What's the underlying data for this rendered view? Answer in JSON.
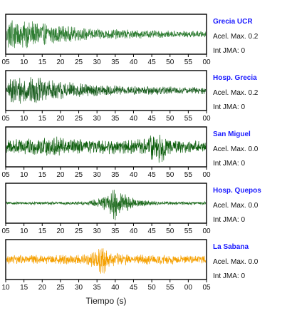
{
  "chart_data": {
    "type": "line",
    "xlabel": "Tiempo (s)",
    "panels": [
      {
        "station": "Grecia UCR",
        "acel_label": "Acel. Max. 0.2",
        "jma_label": "Int JMA: 0",
        "color": "#2e7d32",
        "tick_labels": [
          "05",
          "10",
          "15",
          "20",
          "25",
          "30",
          "35",
          "40",
          "45",
          "50",
          "55",
          "00"
        ],
        "xlim": [
          5,
          62
        ],
        "envelope": [
          [
            5,
            0.3
          ],
          [
            6,
            0.95
          ],
          [
            9,
            0.9
          ],
          [
            13,
            0.75
          ],
          [
            17,
            0.6
          ],
          [
            22,
            0.45
          ],
          [
            27,
            0.35
          ],
          [
            33,
            0.3
          ],
          [
            40,
            0.25
          ],
          [
            50,
            0.2
          ],
          [
            62,
            0.18
          ]
        ]
      },
      {
        "station": "Hosp. Grecia",
        "acel_label": "Acel. Max. 0.2",
        "jma_label": "Int JMA: 0",
        "color": "#1b5e20",
        "tick_labels": [
          "05",
          "10",
          "15",
          "20",
          "25",
          "30",
          "35",
          "40",
          "45",
          "50",
          "55",
          "00"
        ],
        "xlim": [
          1,
          59
        ],
        "envelope": [
          [
            1,
            0.3
          ],
          [
            3,
            0.85
          ],
          [
            7,
            0.75
          ],
          [
            11,
            0.7
          ],
          [
            15,
            0.55
          ],
          [
            20,
            0.45
          ],
          [
            25,
            0.35
          ],
          [
            30,
            0.3
          ],
          [
            40,
            0.25
          ],
          [
            50,
            0.22
          ],
          [
            59,
            0.2
          ]
        ]
      },
      {
        "station": "San Miguel",
        "acel_label": "Acel. Max. 0.0",
        "jma_label": "Int JMA: 0",
        "color": "#0d5e0d",
        "tick_labels": [
          "05",
          "10",
          "15",
          "20",
          "25",
          "30",
          "35",
          "40",
          "45",
          "50",
          "55",
          "00"
        ],
        "xlim": [
          5,
          62
        ],
        "envelope": [
          [
            5,
            0.4
          ],
          [
            8,
            0.5
          ],
          [
            12,
            0.45
          ],
          [
            18,
            0.5
          ],
          [
            20,
            0.65
          ],
          [
            22,
            0.45
          ],
          [
            30,
            0.4
          ],
          [
            40,
            0.4
          ],
          [
            45,
            0.45
          ],
          [
            47,
            0.95
          ],
          [
            49,
            0.9
          ],
          [
            51,
            0.5
          ],
          [
            55,
            0.35
          ],
          [
            62,
            0.3
          ]
        ]
      },
      {
        "station": "Hosp. Quepos",
        "acel_label": "Acel. Max. 0.0",
        "jma_label": "Int JMA: 0",
        "color": "#1e6b1e",
        "tick_labels": [
          "05",
          "10",
          "15",
          "20",
          "25",
          "30",
          "35",
          "40",
          "45",
          "50",
          "55",
          "00"
        ],
        "xlim": [
          5,
          62
        ],
        "envelope": [
          [
            5,
            0.08
          ],
          [
            20,
            0.08
          ],
          [
            28,
            0.1
          ],
          [
            31,
            0.25
          ],
          [
            34,
            0.5
          ],
          [
            36,
            0.95
          ],
          [
            38,
            0.7
          ],
          [
            40,
            0.4
          ],
          [
            43,
            0.2
          ],
          [
            48,
            0.1
          ],
          [
            62,
            0.08
          ]
        ]
      },
      {
        "station": "La Sabana",
        "acel_label": "Acel. Max. 0.0",
        "jma_label": "Int JMA: 0",
        "color": "#f5a000",
        "tick_labels": [
          "10",
          "15",
          "20",
          "25",
          "30",
          "35",
          "40",
          "45",
          "50",
          "55",
          "00",
          "05"
        ],
        "xlim": [
          6,
          65
        ],
        "envelope": [
          [
            6,
            0.25
          ],
          [
            20,
            0.25
          ],
          [
            30,
            0.3
          ],
          [
            33,
            0.6
          ],
          [
            34,
            0.95
          ],
          [
            35,
            0.75
          ],
          [
            37,
            0.4
          ],
          [
            42,
            0.3
          ],
          [
            55,
            0.25
          ],
          [
            65,
            0.22
          ]
        ]
      }
    ]
  }
}
